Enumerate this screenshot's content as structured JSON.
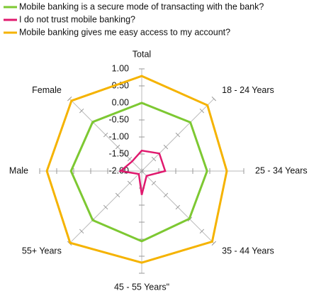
{
  "chart_data": {
    "type": "radar",
    "categories": [
      "Total",
      "18 - 24 Years",
      "25 - 34 Years",
      "35 - 44 Years",
      "45 - 55 Years\"",
      "55+ Years",
      "Male",
      "Female"
    ],
    "series": [
      {
        "name": "Mobile banking is a secure mode of transacting with the bank?",
        "color": "#7dc832",
        "values": [
          0.0,
          0.02,
          -0.08,
          -0.02,
          0.06,
          0.04,
          0.08,
          0.04
        ]
      },
      {
        "name": "I do not trust mobile banking?",
        "color": "#e0196e",
        "values": [
          -1.4,
          -1.27,
          -1.31,
          -1.8,
          -1.3,
          -1.88,
          -1.38,
          -1.6
        ]
      },
      {
        "name": "Mobile banking gives me easy access to my account?",
        "color": "#f5b300",
        "values": [
          0.79,
          0.73,
          0.5,
          0.93,
          0.69,
          0.98,
          0.79,
          0.92
        ]
      }
    ],
    "ylim": [
      -2,
      1
    ],
    "yticks": [
      {
        "value": -2,
        "label": "-2.00"
      },
      {
        "value": -1.5,
        "label": "-1.50"
      },
      {
        "value": -1,
        "label": "-1.00"
      },
      {
        "value": -0.5,
        "label": "-0.50"
      },
      {
        "value": 0,
        "label": "0.00"
      },
      {
        "value": 0.5,
        "label": "0.50"
      },
      {
        "value": 1,
        "label": "1.00"
      }
    ],
    "legend": "top-left"
  }
}
